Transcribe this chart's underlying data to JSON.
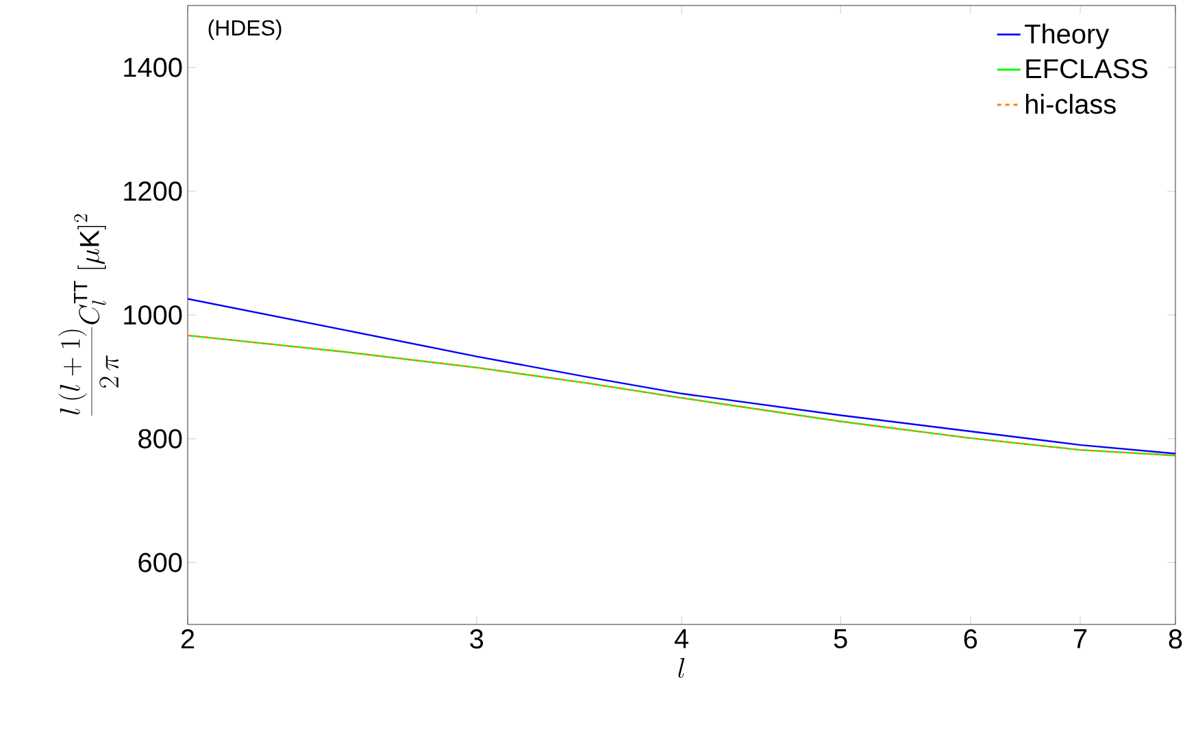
{
  "chart_data": {
    "type": "line",
    "xlabel": "l",
    "ylabel": "\\frac{l\\,(l+1)}{2\\,\\pi}C_l^{\\mathrm{TT}}\\;[\\mu\\mathrm{K}]^2",
    "annotations": [
      "(HDES)"
    ],
    "log": "x",
    "xlim": [
      2,
      8
    ],
    "ylim": [
      500,
      1500
    ],
    "xticks": [
      2,
      3,
      4,
      5,
      6,
      7,
      8
    ],
    "yticks": [
      600,
      800,
      1000,
      1200,
      1400
    ],
    "grid": false,
    "legend": "top right",
    "marker": "none",
    "series": [
      {
        "name": "Theory",
        "color": "#0000ff",
        "line_style": "solid",
        "x": [
          2,
          2.5,
          3,
          3.5,
          4,
          5,
          6,
          7,
          8
        ],
        "values": [
          1026,
          975,
          933,
          900,
          873,
          838,
          812,
          790,
          776
        ]
      },
      {
        "name": "EFCLASS",
        "color": "#00ff00",
        "line_style": "solid",
        "x": [
          2,
          2.5,
          3,
          3.5,
          4,
          5,
          6,
          7,
          8
        ],
        "values": [
          967,
          940,
          915,
          890,
          866,
          828,
          801,
          782,
          773
        ]
      },
      {
        "name": "hi-class",
        "color": "#ff8000",
        "line_style": "dashed",
        "x": [
          2,
          2.5,
          3,
          3.5,
          4,
          5,
          6,
          7,
          8
        ],
        "values": [
          967,
          940,
          915,
          890,
          866,
          828,
          801,
          782,
          773
        ]
      }
    ]
  }
}
